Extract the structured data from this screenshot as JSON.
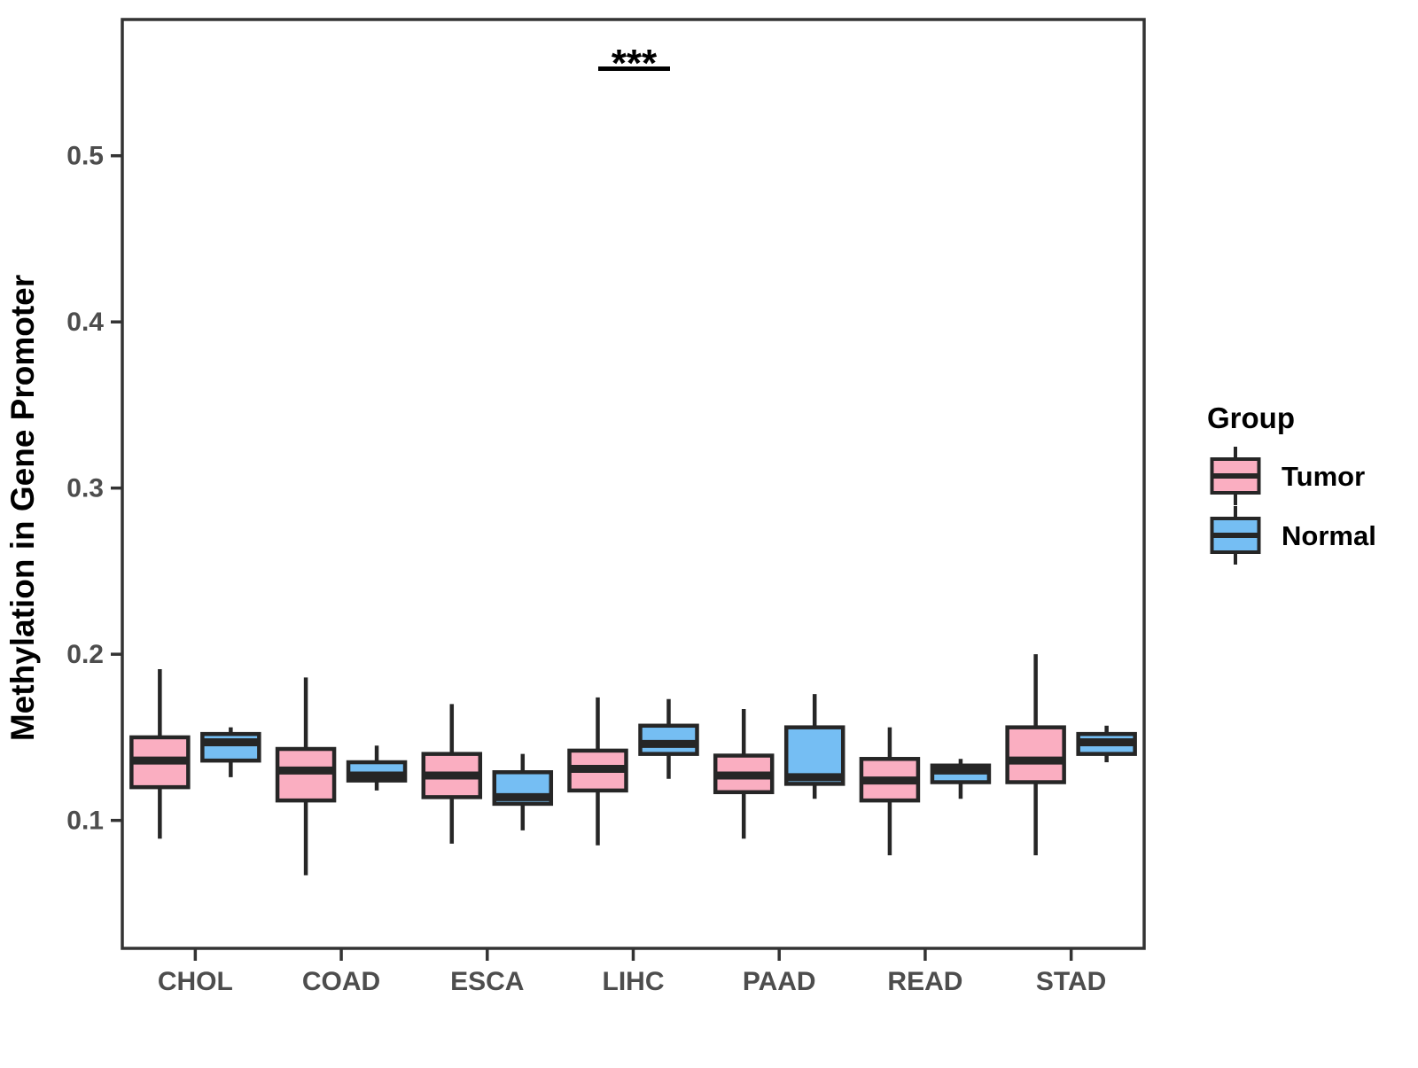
{
  "chart": {
    "ylabel": "Methylation in Gene Promoter",
    "legend": {
      "title": "Group",
      "items": [
        {
          "label": "Tumor",
          "color": "#FAAEC1"
        },
        {
          "label": "Normal",
          "color": "#75BEF3"
        }
      ]
    },
    "significance": {
      "label": "***",
      "comparison": "LIHC Tumor vs Normal"
    }
  },
  "chart_data": {
    "type": "boxplot",
    "title": "",
    "xlabel": "",
    "ylabel": "Methylation in Gene Promoter",
    "categories": [
      "CHOL",
      "COAD",
      "ESCA",
      "LIHC",
      "PAAD",
      "READ",
      "STAD"
    ],
    "yticks": [
      0.1,
      0.2,
      0.3,
      0.4,
      0.5
    ],
    "ytick_labels": [
      "0.1",
      "0.2",
      "0.3",
      "0.4",
      "0.5"
    ],
    "ylim": [
      0.023,
      0.582
    ],
    "grid": false,
    "legend_position": "right",
    "colors": {
      "box_stroke": "#262626",
      "axis_stroke": "#333333",
      "tumor_fill": "#FAAEC1",
      "normal_fill": "#75BEF3",
      "background": "#ffffff"
    },
    "series": [
      {
        "name": "Tumor",
        "color": "#FAAEC1",
        "boxes": [
          {
            "category": "CHOL",
            "whisker_low": 0.089,
            "q1": 0.12,
            "median": 0.136,
            "q3": 0.15,
            "whisker_high": 0.191
          },
          {
            "category": "COAD",
            "whisker_low": 0.067,
            "q1": 0.112,
            "median": 0.13,
            "q3": 0.143,
            "whisker_high": 0.186
          },
          {
            "category": "ESCA",
            "whisker_low": 0.086,
            "q1": 0.114,
            "median": 0.127,
            "q3": 0.14,
            "whisker_high": 0.17
          },
          {
            "category": "LIHC",
            "whisker_low": 0.085,
            "q1": 0.118,
            "median": 0.131,
            "q3": 0.142,
            "whisker_high": 0.174
          },
          {
            "category": "PAAD",
            "whisker_low": 0.089,
            "q1": 0.117,
            "median": 0.127,
            "q3": 0.139,
            "whisker_high": 0.167
          },
          {
            "category": "READ",
            "whisker_low": 0.079,
            "q1": 0.112,
            "median": 0.124,
            "q3": 0.137,
            "whisker_high": 0.156
          },
          {
            "category": "STAD",
            "whisker_low": 0.079,
            "q1": 0.123,
            "median": 0.136,
            "q3": 0.156,
            "whisker_high": 0.2
          }
        ]
      },
      {
        "name": "Normal",
        "color": "#75BEF3",
        "boxes": [
          {
            "category": "CHOL",
            "whisker_low": 0.126,
            "q1": 0.136,
            "median": 0.147,
            "q3": 0.152,
            "whisker_high": 0.156
          },
          {
            "category": "COAD",
            "whisker_low": 0.118,
            "q1": 0.124,
            "median": 0.127,
            "q3": 0.135,
            "whisker_high": 0.145
          },
          {
            "category": "ESCA",
            "whisker_low": 0.094,
            "q1": 0.11,
            "median": 0.114,
            "q3": 0.129,
            "whisker_high": 0.14
          },
          {
            "category": "LIHC",
            "whisker_low": 0.125,
            "q1": 0.14,
            "median": 0.146,
            "q3": 0.157,
            "whisker_high": 0.173
          },
          {
            "category": "PAAD",
            "whisker_low": 0.113,
            "q1": 0.122,
            "median": 0.126,
            "q3": 0.156,
            "whisker_high": 0.176
          },
          {
            "category": "READ",
            "whisker_low": 0.113,
            "q1": 0.123,
            "median": 0.13,
            "q3": 0.133,
            "whisker_high": 0.137
          },
          {
            "category": "STAD",
            "whisker_low": 0.135,
            "q1": 0.14,
            "median": 0.147,
            "q3": 0.152,
            "whisker_high": 0.157
          }
        ]
      }
    ],
    "annotation": {
      "label": "***",
      "category": "LIHC"
    }
  }
}
